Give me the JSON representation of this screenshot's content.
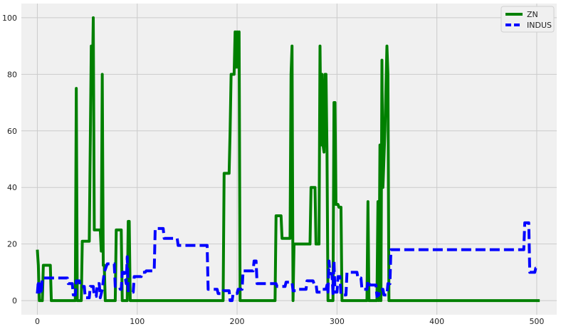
{
  "chart_data": {
    "type": "line",
    "title": "",
    "xlabel": "",
    "ylabel": "",
    "xlim": [
      -16,
      520
    ],
    "ylim": [
      -5,
      105
    ],
    "xticks": [
      0,
      100,
      200,
      300,
      400,
      500
    ],
    "yticks": [
      0,
      20,
      40,
      60,
      80,
      100
    ],
    "grid": true,
    "legend_position": "top-right",
    "series": [
      {
        "name": "ZN",
        "color": "#008000",
        "style": "solid",
        "points": [
          [
            0,
            18
          ],
          [
            1,
            12.5
          ],
          [
            2,
            0
          ],
          [
            5,
            0
          ],
          [
            6,
            12.5
          ],
          [
            13,
            12.5
          ],
          [
            14,
            0
          ],
          [
            38,
            0
          ],
          [
            39,
            75
          ],
          [
            40,
            0
          ],
          [
            44,
            0
          ],
          [
            45,
            21
          ],
          [
            52,
            21
          ],
          [
            54,
            90
          ],
          [
            55,
            75
          ],
          [
            56,
            100
          ],
          [
            57,
            25
          ],
          [
            63,
            25
          ],
          [
            64,
            17.5
          ],
          [
            65,
            80
          ],
          [
            66,
            12.5
          ],
          [
            67,
            12.5
          ],
          [
            68,
            0
          ],
          [
            78,
            0
          ],
          [
            79,
            25
          ],
          [
            84,
            25
          ],
          [
            85,
            0
          ],
          [
            90,
            0
          ],
          [
            91,
            28
          ],
          [
            92,
            28
          ],
          [
            93,
            0
          ],
          [
            186,
            0
          ],
          [
            187,
            45
          ],
          [
            192,
            45
          ],
          [
            193,
            60
          ],
          [
            194,
            80
          ],
          [
            197,
            80
          ],
          [
            198,
            95
          ],
          [
            199,
            82.5
          ],
          [
            200,
            95
          ],
          [
            201,
            82.5
          ],
          [
            202,
            95
          ],
          [
            203,
            0
          ],
          [
            238,
            0
          ],
          [
            239,
            30
          ],
          [
            244,
            30
          ],
          [
            245,
            22
          ],
          [
            253,
            22
          ],
          [
            254,
            80
          ],
          [
            255,
            90
          ],
          [
            256,
            0
          ],
          [
            257,
            20
          ],
          [
            273,
            20
          ],
          [
            274,
            40
          ],
          [
            278,
            40
          ],
          [
            279,
            20
          ],
          [
            282,
            20
          ],
          [
            283,
            90
          ],
          [
            284,
            55
          ],
          [
            285,
            80
          ],
          [
            286,
            55
          ],
          [
            287,
            52.5
          ],
          [
            288,
            80
          ],
          [
            289,
            80
          ],
          [
            290,
            52.5
          ],
          [
            291,
            0
          ],
          [
            296,
            0
          ],
          [
            297,
            70
          ],
          [
            298,
            70
          ],
          [
            299,
            34
          ],
          [
            301,
            34
          ],
          [
            302,
            33
          ],
          [
            304,
            33
          ],
          [
            305,
            0
          ],
          [
            330,
            0
          ],
          [
            331,
            35
          ],
          [
            332,
            0
          ],
          [
            340,
            0
          ],
          [
            341,
            35
          ],
          [
            342,
            0
          ],
          [
            343,
            55
          ],
          [
            344,
            0
          ],
          [
            345,
            85
          ],
          [
            346,
            40
          ],
          [
            348,
            60
          ],
          [
            350,
            90
          ],
          [
            351,
            80
          ],
          [
            352,
            0
          ],
          [
            503,
            0
          ]
        ]
      },
      {
        "name": "INDUS",
        "color": "#0000ff",
        "style": "dashed",
        "points": [
          [
            0,
            2.5
          ],
          [
            1,
            7
          ],
          [
            2,
            2
          ],
          [
            3,
            7
          ],
          [
            4,
            2.5
          ],
          [
            5,
            8
          ],
          [
            30,
            8
          ],
          [
            31,
            6
          ],
          [
            35,
            6
          ],
          [
            36,
            2
          ],
          [
            38,
            2
          ],
          [
            39,
            7
          ],
          [
            42,
            7
          ],
          [
            43,
            5
          ],
          [
            47,
            5
          ],
          [
            48,
            1
          ],
          [
            52,
            1
          ],
          [
            53,
            5
          ],
          [
            56,
            5
          ],
          [
            57,
            1.5
          ],
          [
            59,
            1.5
          ],
          [
            60,
            6
          ],
          [
            62,
            6
          ],
          [
            63,
            1
          ],
          [
            65,
            4
          ],
          [
            67,
            10
          ],
          [
            68,
            11
          ],
          [
            70,
            13
          ],
          [
            77,
            13
          ],
          [
            78,
            5
          ],
          [
            82,
            5
          ],
          [
            83,
            4
          ],
          [
            84,
            4
          ],
          [
            85,
            10
          ],
          [
            87,
            10
          ],
          [
            88,
            8
          ],
          [
            89,
            6
          ],
          [
            90,
            15.5
          ],
          [
            91,
            3
          ],
          [
            96,
            3
          ],
          [
            97,
            8.5
          ],
          [
            104,
            8.5
          ],
          [
            105,
            10
          ],
          [
            108,
            10
          ],
          [
            109,
            10.5
          ],
          [
            117,
            10.5
          ],
          [
            118,
            25.5
          ],
          [
            126,
            25.5
          ],
          [
            127,
            22
          ],
          [
            140,
            22
          ],
          [
            141,
            19.5
          ],
          [
            170,
            19.5
          ],
          [
            171,
            4
          ],
          [
            180,
            4
          ],
          [
            181,
            2.5
          ],
          [
            185,
            2.5
          ],
          [
            186,
            3.5
          ],
          [
            192,
            3.5
          ],
          [
            193,
            0
          ],
          [
            195,
            0
          ],
          [
            196,
            2.5
          ],
          [
            200,
            2.5
          ],
          [
            201,
            4
          ],
          [
            205,
            4
          ],
          [
            206,
            10.5
          ],
          [
            216,
            10.5
          ],
          [
            217,
            14
          ],
          [
            219,
            14
          ],
          [
            220,
            6
          ],
          [
            239,
            6
          ],
          [
            240,
            5
          ],
          [
            248,
            5
          ],
          [
            249,
            6.5
          ],
          [
            255,
            6.5
          ],
          [
            256,
            3.5
          ],
          [
            260,
            3.5
          ],
          [
            261,
            4
          ],
          [
            269,
            4
          ],
          [
            270,
            7
          ],
          [
            276,
            7
          ],
          [
            277,
            6
          ],
          [
            279,
            6
          ],
          [
            280,
            3
          ],
          [
            284,
            3
          ],
          [
            285,
            4
          ],
          [
            289,
            4
          ],
          [
            290,
            5.5
          ],
          [
            291,
            3
          ],
          [
            292,
            14
          ],
          [
            293,
            9.5
          ],
          [
            295,
            9.5
          ],
          [
            296,
            2.5
          ],
          [
            297,
            14
          ],
          [
            298,
            3
          ],
          [
            300,
            3
          ],
          [
            301,
            8.5
          ],
          [
            303,
            8.5
          ],
          [
            304,
            2
          ],
          [
            309,
            2
          ],
          [
            310,
            10
          ],
          [
            320,
            10
          ],
          [
            321,
            8
          ],
          [
            324,
            8
          ],
          [
            325,
            4
          ],
          [
            330,
            4
          ],
          [
            331,
            7
          ],
          [
            333,
            5.5
          ],
          [
            339,
            5.5
          ],
          [
            340,
            1.5
          ],
          [
            342,
            2
          ],
          [
            343,
            4
          ],
          [
            346,
            4
          ],
          [
            347,
            2
          ],
          [
            350,
            2
          ],
          [
            351,
            6
          ],
          [
            353,
            6
          ],
          [
            354,
            18
          ],
          [
            487,
            18
          ],
          [
            488,
            27.5
          ],
          [
            492,
            27.5
          ],
          [
            493,
            10
          ],
          [
            498,
            10
          ],
          [
            499,
            11.5
          ],
          [
            503,
            11.5
          ]
        ]
      }
    ]
  }
}
